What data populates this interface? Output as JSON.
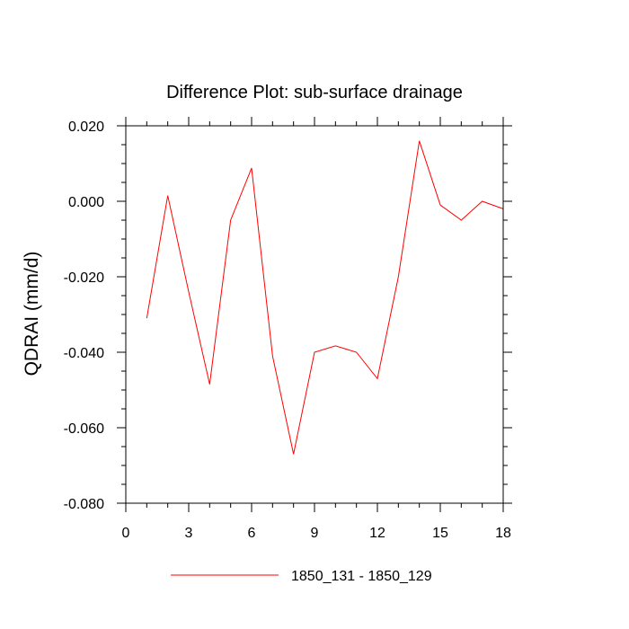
{
  "chart_data": {
    "type": "line",
    "title": "Difference Plot: sub-surface drainage",
    "xlabel": "",
    "ylabel": "QDRAI  (mm/d)",
    "xlim": [
      0,
      18
    ],
    "ylim": [
      -0.08,
      0.02
    ],
    "xticks": [
      0,
      3,
      6,
      9,
      12,
      15,
      18
    ],
    "xtick_labels": [
      "0",
      "3",
      "6",
      "9",
      "12",
      "15",
      "18"
    ],
    "yticks": [
      -0.08,
      -0.06,
      -0.04,
      -0.02,
      0.0,
      0.02
    ],
    "ytick_labels": [
      "-0.080",
      "-0.060",
      "-0.040",
      "-0.020",
      "0.000",
      "0.020"
    ],
    "grid": false,
    "legend_position": "bottom",
    "series": [
      {
        "name": "1850_131 - 1850_129",
        "color": "#ff0000",
        "x": [
          1,
          2,
          3,
          4,
          5,
          6,
          7,
          8,
          9,
          10,
          11,
          12,
          13,
          14,
          15,
          16,
          17,
          18
        ],
        "y": [
          -0.031,
          0.0015,
          -0.024,
          -0.0485,
          -0.005,
          0.0088,
          -0.041,
          -0.067,
          -0.04,
          -0.0383,
          -0.04,
          -0.047,
          -0.02,
          0.016,
          -0.001,
          -0.005,
          0.0,
          -0.002
        ]
      }
    ]
  }
}
